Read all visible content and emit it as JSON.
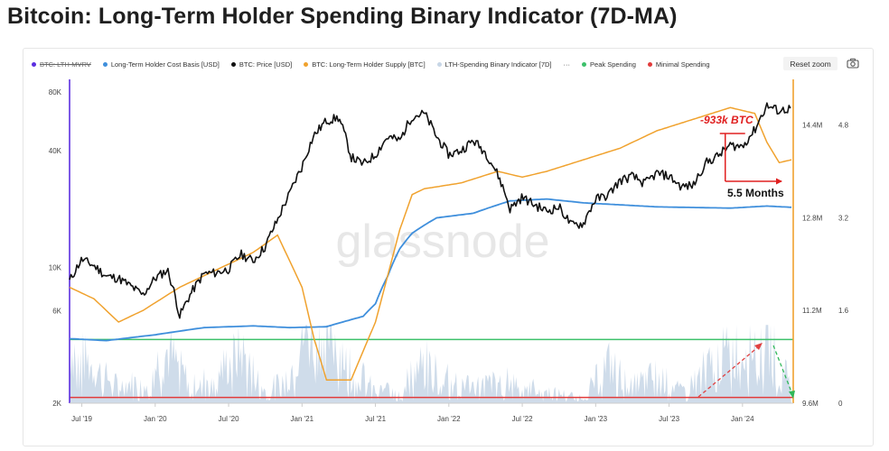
{
  "page": {
    "title": "Bitcoin: Long-Term Holder Spending Binary Indicator (7D-MA)"
  },
  "toolbar": {
    "reset_zoom": "Reset zoom"
  },
  "legend": [
    {
      "label": "BTC: LTH-MVRV",
      "color": "#5b2ee0",
      "disabled": true
    },
    {
      "label": "Long-Term Holder Cost Basis [USD]",
      "color": "#3f8fdc",
      "disabled": false
    },
    {
      "label": "BTC: Price [USD]",
      "color": "#111111",
      "disabled": false
    },
    {
      "label": "BTC: Long-Term Holder Supply [BTC]",
      "color": "#f0a22e",
      "disabled": false
    },
    {
      "label": "LTH-Spending Binary Indicator [7D]",
      "color": "#c7d6e6",
      "disabled": false
    },
    {
      "label": "···",
      "color": "",
      "disabled": false
    },
    {
      "label": "Peak Spending",
      "color": "#3cc06a",
      "disabled": false
    },
    {
      "label": "Minimal Spending",
      "color": "#e23b3b",
      "disabled": false
    }
  ],
  "watermark": "glassnode",
  "annotations": {
    "supply_drop": "-933k BTC",
    "duration": "5.5 Months"
  },
  "colors": {
    "price": "#111111",
    "cost_basis": "#3f8fdc",
    "supply": "#f0a22e",
    "binary": "#c7d6e6",
    "peak": "#3cc06a",
    "minimal": "#e23b3b",
    "mvrv": "#5b2ee0",
    "annotation": "#e02020"
  },
  "chart_data": {
    "type": "line",
    "title": "Bitcoin: Long-Term Holder Spending Binary Indicator (7D-MA)",
    "x_ticks": [
      "Jul '19",
      "Jan '20",
      "Jul '20",
      "Jan '21",
      "Jul '21",
      "Jan '22",
      "Jul '22",
      "Jan '23",
      "Jul '23",
      "Jan '24"
    ],
    "x_range": [
      "2019-06",
      "2024-05"
    ],
    "y_left": {
      "scale": "log",
      "range": [
        2000,
        80000
      ],
      "ticks": [
        "80K",
        "40K",
        "10K",
        "6K",
        "2K"
      ]
    },
    "y_right_supply": {
      "range_btc_m": [
        9.6,
        15.0
      ],
      "ticks": [
        "14.4M",
        "12.8M",
        "11.2M",
        "9.6M"
      ]
    },
    "y_right_mvrv": {
      "range": [
        0,
        5.4
      ],
      "ticks": [
        "4.8",
        "3.2",
        "1.6",
        "0"
      ]
    },
    "series": [
      {
        "name": "BTC: Price [USD]",
        "axis": "left",
        "points": [
          [
            "2019-06",
            8500
          ],
          [
            "2019-07",
            11000
          ],
          [
            "2019-08",
            10200
          ],
          [
            "2019-09",
            9000
          ],
          [
            "2019-10",
            8800
          ],
          [
            "2019-11",
            8000
          ],
          [
            "2019-12",
            7200
          ],
          [
            "2020-01",
            8800
          ],
          [
            "2020-02",
            9700
          ],
          [
            "2020-03",
            5600
          ],
          [
            "2020-04",
            7500
          ],
          [
            "2020-05",
            9300
          ],
          [
            "2020-06",
            9400
          ],
          [
            "2020-07",
            9800
          ],
          [
            "2020-08",
            11700
          ],
          [
            "2020-09",
            10800
          ],
          [
            "2020-10",
            12800
          ],
          [
            "2020-11",
            17500
          ],
          [
            "2020-12",
            24000
          ],
          [
            "2021-01",
            33000
          ],
          [
            "2021-02",
            48000
          ],
          [
            "2021-03",
            57000
          ],
          [
            "2021-04",
            59000
          ],
          [
            "2021-05",
            37000
          ],
          [
            "2021-06",
            34000
          ],
          [
            "2021-07",
            38000
          ],
          [
            "2021-08",
            47000
          ],
          [
            "2021-09",
            45000
          ],
          [
            "2021-10",
            60000
          ],
          [
            "2021-11",
            62000
          ],
          [
            "2021-12",
            47000
          ],
          [
            "2022-01",
            38000
          ],
          [
            "2022-02",
            40000
          ],
          [
            "2022-03",
            45000
          ],
          [
            "2022-04",
            39000
          ],
          [
            "2022-05",
            30000
          ],
          [
            "2022-06",
            20000
          ],
          [
            "2022-07",
            23000
          ],
          [
            "2022-08",
            21000
          ],
          [
            "2022-09",
            19500
          ],
          [
            "2022-10",
            20500
          ],
          [
            "2022-11",
            16500
          ],
          [
            "2022-12",
            16800
          ],
          [
            "2023-01",
            22500
          ],
          [
            "2023-02",
            23500
          ],
          [
            "2023-03",
            28000
          ],
          [
            "2023-04",
            29500
          ],
          [
            "2023-05",
            27000
          ],
          [
            "2023-06",
            30500
          ],
          [
            "2023-07",
            29500
          ],
          [
            "2023-08",
            26000
          ],
          [
            "2023-09",
            26500
          ],
          [
            "2023-10",
            34500
          ],
          [
            "2023-11",
            37500
          ],
          [
            "2023-12",
            42500
          ],
          [
            "2024-01",
            42000
          ],
          [
            "2024-02",
            51000
          ],
          [
            "2024-03",
            68000
          ],
          [
            "2024-04",
            64000
          ],
          [
            "2024-05",
            66000
          ]
        ]
      },
      {
        "name": "Long-Term Holder Cost Basis [USD]",
        "axis": "left",
        "points": [
          [
            "2019-06",
            4300
          ],
          [
            "2019-09",
            4200
          ],
          [
            "2020-01",
            4500
          ],
          [
            "2020-05",
            4900
          ],
          [
            "2020-09",
            5000
          ],
          [
            "2020-12",
            4900
          ],
          [
            "2021-03",
            4950
          ],
          [
            "2021-06",
            5600
          ],
          [
            "2021-07",
            6500
          ],
          [
            "2021-08",
            9000
          ],
          [
            "2021-09",
            12500
          ],
          [
            "2021-10",
            15000
          ],
          [
            "2021-12",
            18000
          ],
          [
            "2022-03",
            19000
          ],
          [
            "2022-06",
            22000
          ],
          [
            "2022-09",
            22500
          ],
          [
            "2022-12",
            21500
          ],
          [
            "2023-06",
            20500
          ],
          [
            "2023-12",
            20200
          ],
          [
            "2024-03",
            20700
          ],
          [
            "2024-05",
            20400
          ]
        ]
      },
      {
        "name": "BTC: Long-Term Holder Supply [BTC]",
        "axis": "right",
        "unit": "M BTC",
        "points": [
          [
            "2019-06",
            11.6
          ],
          [
            "2019-08",
            11.4
          ],
          [
            "2019-10",
            11.0
          ],
          [
            "2019-12",
            11.2
          ],
          [
            "2020-03",
            11.6
          ],
          [
            "2020-06",
            11.9
          ],
          [
            "2020-09",
            12.2
          ],
          [
            "2020-11",
            12.5
          ],
          [
            "2021-01",
            11.6
          ],
          [
            "2021-02",
            10.7
          ],
          [
            "2021-03",
            10.0
          ],
          [
            "2021-05",
            10.0
          ],
          [
            "2021-07",
            11.0
          ],
          [
            "2021-09",
            12.6
          ],
          [
            "2021-10",
            13.2
          ],
          [
            "2021-11",
            13.3
          ],
          [
            "2022-02",
            13.4
          ],
          [
            "2022-05",
            13.6
          ],
          [
            "2022-07",
            13.5
          ],
          [
            "2022-09",
            13.6
          ],
          [
            "2022-12",
            13.8
          ],
          [
            "2023-03",
            14.0
          ],
          [
            "2023-06",
            14.3
          ],
          [
            "2023-09",
            14.5
          ],
          [
            "2023-12",
            14.7
          ],
          [
            "2024-02",
            14.6
          ],
          [
            "2024-03",
            14.1
          ],
          [
            "2024-04",
            13.75
          ],
          [
            "2024-05",
            13.8
          ]
        ]
      },
      {
        "name": "LTH-Spending Binary Indicator [7D]",
        "axis": "right_mvrv",
        "points": [
          [
            "2019-06",
            1.0
          ],
          [
            "2019-08",
            0.6
          ],
          [
            "2019-10",
            0.3
          ],
          [
            "2019-12",
            0.4
          ],
          [
            "2020-02",
            0.9
          ],
          [
            "2020-04",
            0.3
          ],
          [
            "2020-06",
            0.5
          ],
          [
            "2020-08",
            0.9
          ],
          [
            "2020-10",
            0.2
          ],
          [
            "2020-12",
            0.5
          ],
          [
            "2021-01",
            1.2
          ],
          [
            "2021-03",
            1.3
          ],
          [
            "2021-05",
            0.7
          ],
          [
            "2021-07",
            0.2
          ],
          [
            "2021-09",
            0.3
          ],
          [
            "2021-11",
            0.7
          ],
          [
            "2022-01",
            0.5
          ],
          [
            "2022-03",
            0.3
          ],
          [
            "2022-06",
            0.4
          ],
          [
            "2022-09",
            0.2
          ],
          [
            "2022-12",
            0.1
          ],
          [
            "2023-02",
            0.7
          ],
          [
            "2023-04",
            0.3
          ],
          [
            "2023-06",
            0.5
          ],
          [
            "2023-08",
            0.2
          ],
          [
            "2023-10",
            0.6
          ],
          [
            "2023-12",
            0.9
          ],
          [
            "2024-02",
            1.1
          ],
          [
            "2024-03",
            1.3
          ],
          [
            "2024-04",
            0.8
          ],
          [
            "2024-05",
            0.4
          ]
        ]
      },
      {
        "name": "Peak Spending",
        "axis": "right_mvrv",
        "constant": 1.1
      },
      {
        "name": "Minimal Spending",
        "axis": "right_mvrv",
        "constant": 0.1
      }
    ]
  }
}
